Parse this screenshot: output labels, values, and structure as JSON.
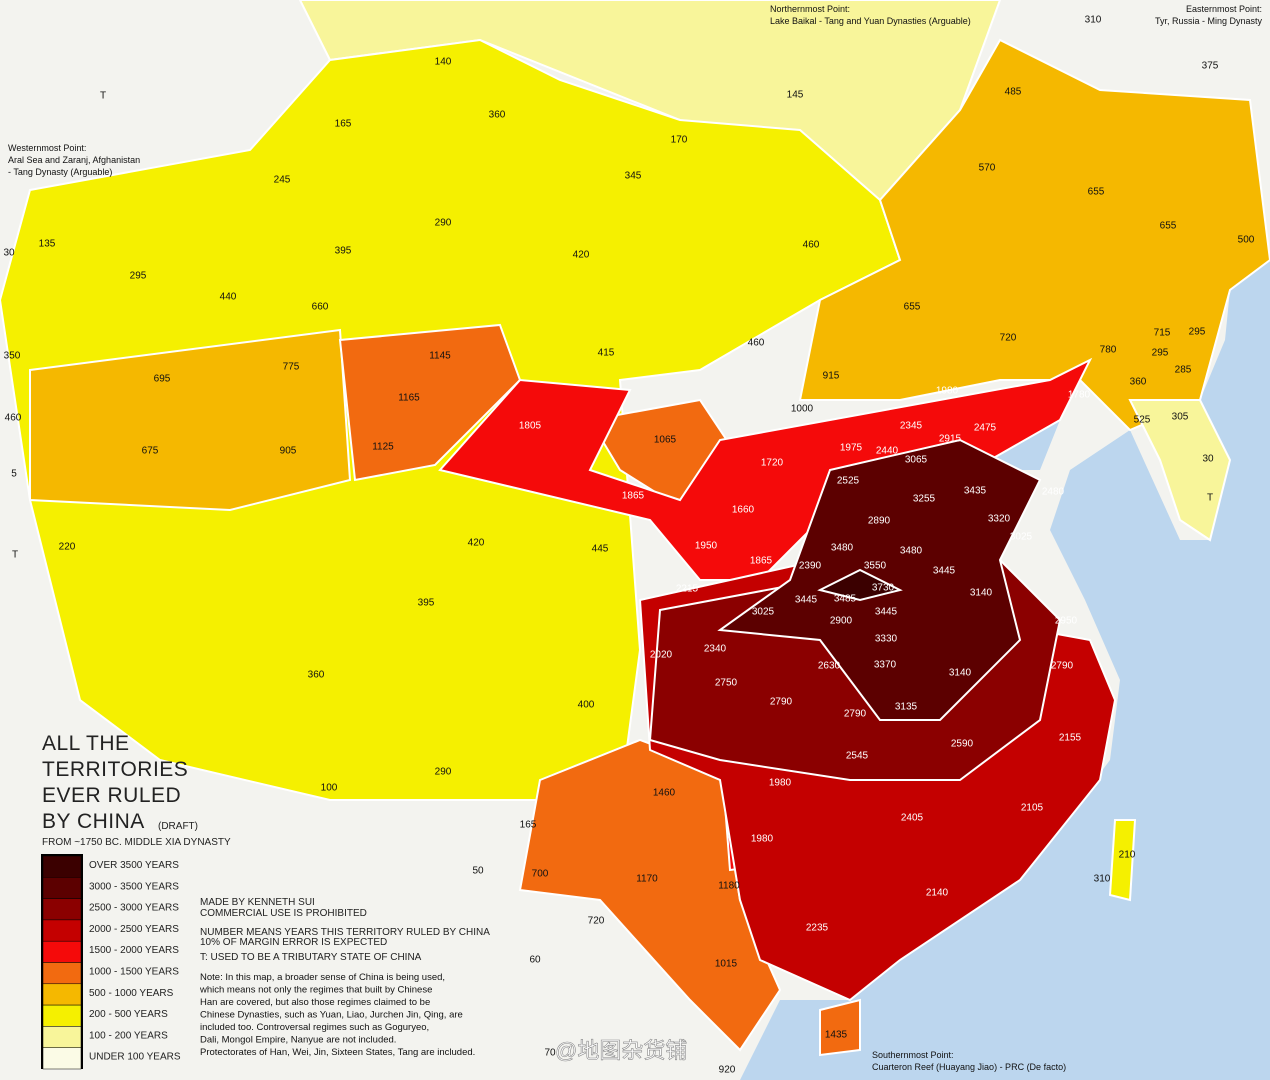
{
  "title": {
    "lines": [
      "ALL THE",
      "TERRITORIES",
      "EVER RULED",
      "BY CHINA"
    ],
    "draft": "(DRAFT)",
    "subtitle": "FROM ~1750 BC. MIDDLE XIA DYNASTY"
  },
  "legend": [
    {
      "label": "OVER 3500 YEARS",
      "color": "#3b0000"
    },
    {
      "label": "3000 - 3500 YEARS",
      "color": "#5c0000"
    },
    {
      "label": "2500 - 3000 YEARS",
      "color": "#8b0000"
    },
    {
      "label": "2000 - 2500 YEARS",
      "color": "#c40000"
    },
    {
      "label": "1500 - 2000 YEARS",
      "color": "#f50a0a"
    },
    {
      "label": "1000 - 1500 YEARS",
      "color": "#f26a10"
    },
    {
      "label": "500 - 1000 YEARS",
      "color": "#f5b800"
    },
    {
      "label": "200 - 500 YEARS",
      "color": "#f5f000"
    },
    {
      "label": "100 - 200 YEARS",
      "color": "#f8f59a"
    },
    {
      "label": "UNDER 100 YEARS",
      "color": "#fbfbe6"
    }
  ],
  "credits": [
    "MADE BY KENNETH SUI",
    "COMMERCIAL USE IS PROHIBITED",
    "NUMBER MEANS YEARS THIS TERRITORY RULED BY CHINA",
    "10% OF MARGIN ERROR IS EXPECTED",
    "T: USED TO BE A TRIBUTARY STATE OF CHINA"
  ],
  "note": [
    "Note: In this map, a broader sense of China is being used,",
    "which means not only the regimes that built by Chinese",
    "Han are covered, but also those regimes claimed to be",
    "Chinese Dynasties, such as Yuan, Liao, Jurchen Jin, Qing, are",
    "included too. Controversal regimes such as Goguryeo,",
    "Dali, Mongol Empire, Nanyue are not included.",
    "Protectorates of Han, Wei, Jin, Sixteen States, Tang are included."
  ],
  "extremes": [
    {
      "title": "Westernmost Point:",
      "lines": [
        "Aral Sea and Zaranj, Afghanistan",
        "- Tang Dynasty (Arguable)"
      ]
    },
    {
      "title": "Northernmost Point:",
      "lines": [
        "Lake Baikal - Tang and Yuan Dynasties (Arguable)"
      ]
    },
    {
      "title": "Easternmost Point:",
      "lines": [
        "Tyr, Russia - Ming Dynasty"
      ]
    },
    {
      "title": "Southernmost Point:",
      "lines": [
        "Cuarteron Reef (Huayang Jiao) - PRC (De facto)"
      ]
    }
  ],
  "regions": [
    "310",
    "375",
    "485",
    "140",
    "145",
    "360",
    "165",
    "170",
    "345",
    "245",
    "570",
    "655",
    "655",
    "500",
    "135",
    "30",
    "290",
    "395",
    "420",
    "460",
    "295",
    "440",
    "660",
    "655",
    "720",
    "780",
    "715",
    "295",
    "295",
    "285",
    "360",
    "350",
    "1145",
    "415",
    "460",
    "915",
    "695",
    "775",
    "460",
    "1165",
    "1980",
    "1780",
    "525",
    "305",
    "1000",
    "1805",
    "1065",
    "2345",
    "2475",
    "2915",
    "675",
    "905",
    "1125",
    "1975",
    "2440",
    "3065",
    "30",
    "5",
    "1720",
    "2525",
    "3435",
    "2480",
    "1865",
    "3255",
    "T",
    "1660",
    "2890",
    "3320",
    "3025",
    "1950",
    "220",
    "T",
    "420",
    "445",
    "3480",
    "3480",
    "1865",
    "2390",
    "3550",
    "3445",
    "3730",
    "2215",
    "3445",
    "3485",
    "3140",
    "395",
    "3025",
    "3445",
    "2900",
    "2950",
    "3330",
    "2020",
    "2340",
    "2630",
    "3370",
    "2790",
    "360",
    "3140",
    "2750",
    "400",
    "2790",
    "3135",
    "2790",
    "2590",
    "2155",
    "2545",
    "290",
    "1460",
    "1980",
    "100",
    "2105",
    "165",
    "2405",
    "1980",
    "210",
    "50",
    "1170",
    "700",
    "1180",
    "310",
    "2140",
    "720",
    "2235",
    "60",
    "1015",
    "1435",
    "70",
    "920",
    "T"
  ],
  "watermark": "@地图杂货铺"
}
